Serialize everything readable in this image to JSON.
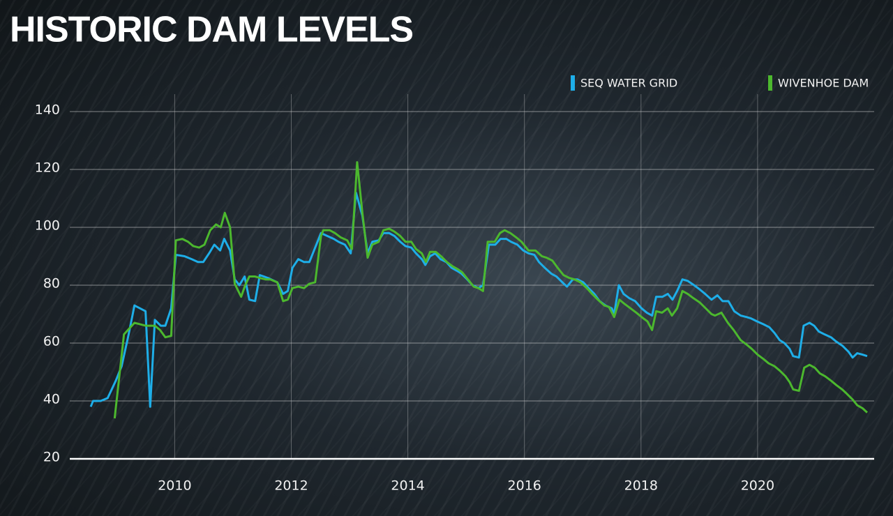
{
  "chart_data": {
    "type": "line",
    "title": "HISTORIC DAM LEVELS",
    "xlim": [
      2008.2,
      2022
    ],
    "xticks": [
      2010,
      2012,
      2014,
      2016,
      2018,
      2020
    ],
    "ylim": [
      20,
      145
    ],
    "yticks": [
      20,
      40,
      60,
      80,
      100,
      120,
      140
    ],
    "grid": true,
    "legend": "top-right",
    "series": [
      {
        "name": "SEQ WATER GRID",
        "color": "#1eaee8",
        "x": [
          2008.56,
          2008.6,
          2008.73,
          2008.85,
          2008.99,
          2009.09,
          2009.21,
          2009.31,
          2009.5,
          2009.58,
          2009.66,
          2009.76,
          2009.84,
          2009.94,
          2010.02,
          2010.17,
          2010.29,
          2010.4,
          2010.49,
          2010.59,
          2010.68,
          2010.78,
          2010.85,
          2010.95,
          2011.03,
          2011.11,
          2011.2,
          2011.28,
          2011.38,
          2011.46,
          2011.6,
          2011.76,
          2011.86,
          2011.94,
          2012.02,
          2012.12,
          2012.22,
          2012.31,
          2012.41,
          2012.51,
          2012.62,
          2012.73,
          2012.81,
          2012.92,
          2013.02,
          2013.11,
          2013.22,
          2013.31,
          2013.39,
          2013.5,
          2013.58,
          2013.68,
          2013.77,
          2013.87,
          2013.96,
          2014.06,
          2014.14,
          2014.24,
          2014.3,
          2014.38,
          2014.47,
          2014.56,
          2014.66,
          2014.75,
          2014.84,
          2014.92,
          2015.02,
          2015.11,
          2015.21,
          2015.29,
          2015.39,
          2015.5,
          2015.59,
          2015.69,
          2015.77,
          2015.88,
          2015.98,
          2016.07,
          2016.17,
          2016.25,
          2016.35,
          2016.46,
          2016.55,
          2016.65,
          2016.73,
          2016.83,
          2016.91,
          2017.01,
          2017.1,
          2017.2,
          2017.29,
          2017.39,
          2017.5,
          2017.54,
          2017.62,
          2017.7,
          2017.8,
          2017.9,
          2018.01,
          2018.1,
          2018.19,
          2018.26,
          2018.37,
          2018.46,
          2018.54,
          2018.62,
          2018.71,
          2018.8,
          2018.91,
          2019.01,
          2019.1,
          2019.21,
          2019.31,
          2019.4,
          2019.5,
          2019.6,
          2019.71,
          2019.81,
          2019.89,
          2019.99,
          2020.1,
          2020.2,
          2020.29,
          2020.38,
          2020.46,
          2020.55,
          2020.61,
          2020.71,
          2020.79,
          2020.89,
          2020.97,
          2021.05,
          2021.15,
          2021.26,
          2021.35,
          2021.46,
          2021.56,
          2021.63,
          2021.71,
          2021.8,
          2021.88
        ],
        "values": [
          38,
          40,
          40,
          41,
          47,
          52,
          63,
          73,
          71,
          38,
          68,
          66,
          66,
          72,
          90.5,
          90,
          89,
          88,
          88,
          91,
          94,
          92,
          96,
          92,
          82,
          80,
          83,
          75,
          74.5,
          83.5,
          82.5,
          81,
          77,
          78,
          86,
          89,
          88,
          88,
          93,
          98,
          97,
          96,
          95,
          94,
          91,
          112,
          104,
          91,
          95,
          95.5,
          98,
          98,
          97,
          95,
          93.5,
          93,
          91,
          89,
          87,
          90,
          91,
          89,
          88,
          86,
          85,
          84,
          82,
          80,
          79,
          80,
          94,
          94,
          96,
          96,
          95,
          94,
          92,
          91,
          90.5,
          88,
          86,
          84,
          83,
          81,
          79.5,
          82,
          82,
          81,
          79,
          77,
          74.5,
          73,
          72,
          70,
          80,
          77,
          75.5,
          74.5,
          72,
          70.5,
          69.5,
          76,
          76,
          77,
          75,
          78,
          82,
          81.5,
          80,
          78.5,
          77,
          75,
          76.5,
          74.5,
          74.5,
          71,
          69.5,
          69,
          68.5,
          67.5,
          66.5,
          65.5,
          63.5,
          61,
          60,
          58,
          55.5,
          55,
          66,
          67,
          66,
          64,
          63,
          62,
          60.5,
          59,
          57,
          55,
          56.5,
          56,
          55.5
        ]
      },
      {
        "name": "WIVENHOE DAM",
        "color": "#4cb82e",
        "x": [
          2008.97,
          2009.13,
          2009.22,
          2009.31,
          2009.5,
          2009.58,
          2009.66,
          2009.75,
          2009.84,
          2009.94,
          2010.02,
          2010.13,
          2010.23,
          2010.32,
          2010.42,
          2010.51,
          2010.61,
          2010.71,
          2010.79,
          2010.86,
          2010.95,
          2011.03,
          2011.14,
          2011.21,
          2011.28,
          2011.38,
          2011.46,
          2011.56,
          2011.64,
          2011.76,
          2011.86,
          2011.94,
          2012.02,
          2012.12,
          2012.22,
          2012.31,
          2012.41,
          2012.51,
          2012.55,
          2012.66,
          2012.75,
          2012.85,
          2012.96,
          2013.04,
          2013.13,
          2013.22,
          2013.31,
          2013.39,
          2013.5,
          2013.58,
          2013.68,
          2013.77,
          2013.87,
          2013.96,
          2014.06,
          2014.14,
          2014.24,
          2014.31,
          2014.38,
          2014.48,
          2014.57,
          2014.67,
          2014.77,
          2014.86,
          2014.93,
          2015.03,
          2015.13,
          2015.21,
          2015.29,
          2015.37,
          2015.49,
          2015.58,
          2015.66,
          2015.76,
          2015.86,
          2015.95,
          2016.07,
          2016.19,
          2016.3,
          2016.38,
          2016.48,
          2016.57,
          2016.67,
          2016.77,
          2016.86,
          2016.96,
          2017.07,
          2017.16,
          2017.26,
          2017.37,
          2017.45,
          2017.54,
          2017.63,
          2017.72,
          2017.82,
          2017.92,
          2018.01,
          2018.11,
          2018.19,
          2018.26,
          2018.36,
          2018.46,
          2018.53,
          2018.62,
          2018.71,
          2018.8,
          2018.9,
          2019.01,
          2019.11,
          2019.21,
          2019.27,
          2019.38,
          2019.49,
          2019.59,
          2019.71,
          2019.81,
          2019.9,
          2020.0,
          2020.1,
          2020.19,
          2020.29,
          2020.38,
          2020.48,
          2020.55,
          2020.61,
          2020.71,
          2020.8,
          2020.89,
          2020.98,
          2021.07,
          2021.16,
          2021.26,
          2021.35,
          2021.45,
          2021.53,
          2021.63,
          2021.71,
          2021.8,
          2021.88
        ],
        "values": [
          34,
          63,
          65,
          67,
          66,
          66,
          66,
          64.5,
          62,
          62.5,
          95.5,
          96,
          95,
          93.5,
          93,
          94,
          99,
          101,
          100,
          105,
          100,
          80.5,
          76,
          80,
          83,
          83,
          82.5,
          82,
          82,
          81,
          74.5,
          75,
          79,
          79.5,
          79,
          80.5,
          81,
          97,
          99,
          99,
          98,
          96.5,
          95.5,
          92.5,
          122.5,
          105,
          89.5,
          94,
          95,
          99,
          99.5,
          98.5,
          97,
          95,
          95,
          92.5,
          91,
          88,
          91.5,
          91.5,
          90,
          88,
          86.5,
          85.5,
          84.5,
          82,
          79.5,
          79,
          78,
          95,
          95,
          98,
          99,
          98,
          96.5,
          95,
          92,
          92,
          90,
          89.5,
          88.5,
          86,
          83.5,
          82.5,
          82,
          81,
          79,
          77,
          75,
          73,
          72.5,
          69,
          75,
          73.5,
          72,
          70.5,
          69,
          67.5,
          64.5,
          71,
          70.5,
          72,
          69.5,
          72,
          78,
          77,
          75.5,
          74,
          72,
          70,
          69.5,
          70.5,
          67,
          64.5,
          61,
          59.5,
          58,
          56,
          54.5,
          53,
          52,
          50.5,
          48.5,
          46.5,
          44,
          43.5,
          51.5,
          52.5,
          51.5,
          49.5,
          48.5,
          47,
          45.5,
          44,
          42.5,
          40.5,
          38.5,
          37.5,
          36
        ]
      }
    ]
  }
}
